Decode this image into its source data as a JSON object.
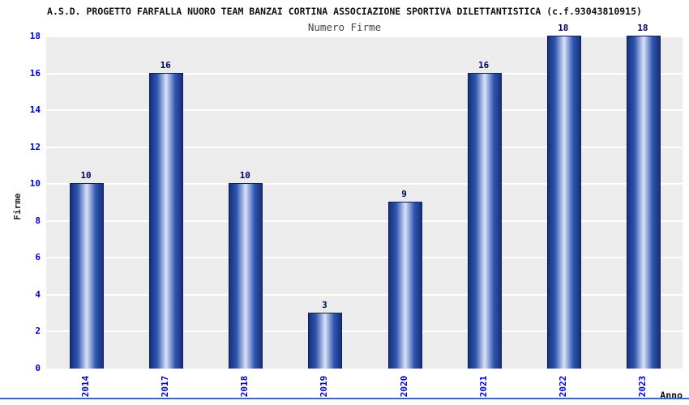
{
  "header": {
    "title": "A.S.D. PROGETTO FARFALLA NUORO TEAM BANZAI CORTINA ASSOCIAZIONE SPORTIVA DILETTANTISTICA (c.f.93043810915)"
  },
  "chart_data": {
    "type": "bar",
    "title": "Numero Firme",
    "categories": [
      "2014",
      "2017",
      "2018",
      "2019",
      "2020",
      "2021",
      "2022",
      "2023"
    ],
    "values": [
      10,
      16,
      10,
      3,
      9,
      16,
      18,
      18
    ],
    "xlabel": "Anno",
    "ylabel": "Firme",
    "ylim": [
      0,
      18
    ],
    "yticks": [
      0,
      2,
      4,
      6,
      8,
      10,
      12,
      14,
      16,
      18
    ],
    "grid": true,
    "legend": false,
    "colors": {
      "bar_edge": "#16307c",
      "bar_mid": "#2f55b0",
      "bar_highlight": "#d9e2f7",
      "bar_border": "#101f55",
      "plot_bg": "#ececec",
      "gridline": "#ffffff",
      "tick_label": "#0000cc",
      "value_label": "#000066",
      "baseline": "#4263b8"
    }
  }
}
